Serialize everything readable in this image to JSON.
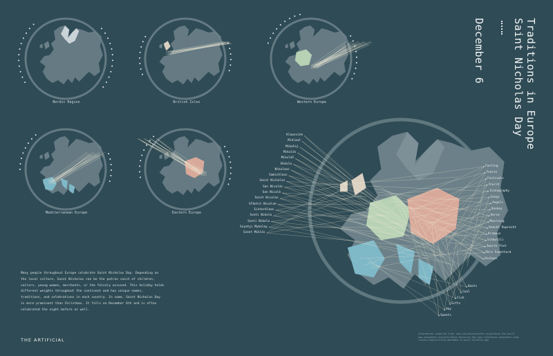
{
  "title": {
    "date": "December 6",
    "name_line1": "Saint Nicholas Day",
    "name_line2": "Traditions in Europe"
  },
  "regions": [
    {
      "label": "Nordic Region"
    },
    {
      "label": "British Isles"
    },
    {
      "label": "Western Europe"
    },
    {
      "label": "Mediterranean Europe"
    },
    {
      "label": "Eastern Europe"
    }
  ],
  "names_left": [
    "Klaasvink",
    "Miklauš",
    "Mikołaj",
    "Mikulás",
    "Mikuláš",
    "Nikola",
    "Nikolaus",
    "Samichlaus",
    "Saint Nicholas",
    "San Nicolás",
    "San Nicolò",
    "Saint Nicolas",
    "Sfântul Nicolae",
    "Sinterklaas",
    "Sveti Nikola",
    "Sveti Nikola",
    "Svyatyi Mykolay",
    "Szent Miklós"
  ],
  "traditions_right": [
    "Fasting",
    "Feasts",
    "Festivals",
    "Church",
    "Iconography",
    "Songs",
    "Angels",
    "Donkey",
    "Horse",
    "Mourning",
    "Knecht Ruprecht",
    "Krampus",
    "Schmutzli",
    "Zwarte Piet",
    "Père Fouettard",
    "Bishops",
    "Boots",
    "Coal",
    "Fish",
    "Gifts",
    "Hay",
    "Sweets"
  ],
  "description": "Many people throughout Europe celebrate Saint Nicholas Day. Depending on the local culture, Saint Nicholas can be the patron saint of children, sailors, young women, merchants, or the falsely accused. This holiday holds different weights throughout the continent and has unique names, traditions, and celebrations in each country. In some, Saint Nicholas Day is more prominent than Christmas. It falls on December 6th and is often celebrated the night before as well.",
  "logo": "THE ARTIFICIAL",
  "source": "Information compiled from: www.stnicholascenter.org/around-the-world www.wikipedia.org/wiki/Saint_Nicholas_Day www.ricksteves.com/watch-read-listen/read/articles/december-6-saint-nicholas-day",
  "colors": {
    "background": "#2f4b55",
    "land": "#6b8088",
    "nordic": "#c9d3d8",
    "british": "#d9cfc1",
    "western": "#b7d1b4",
    "mediterranean": "#7fb8c7",
    "eastern": "#d8a99a",
    "lines": "#f1ecd8"
  }
}
